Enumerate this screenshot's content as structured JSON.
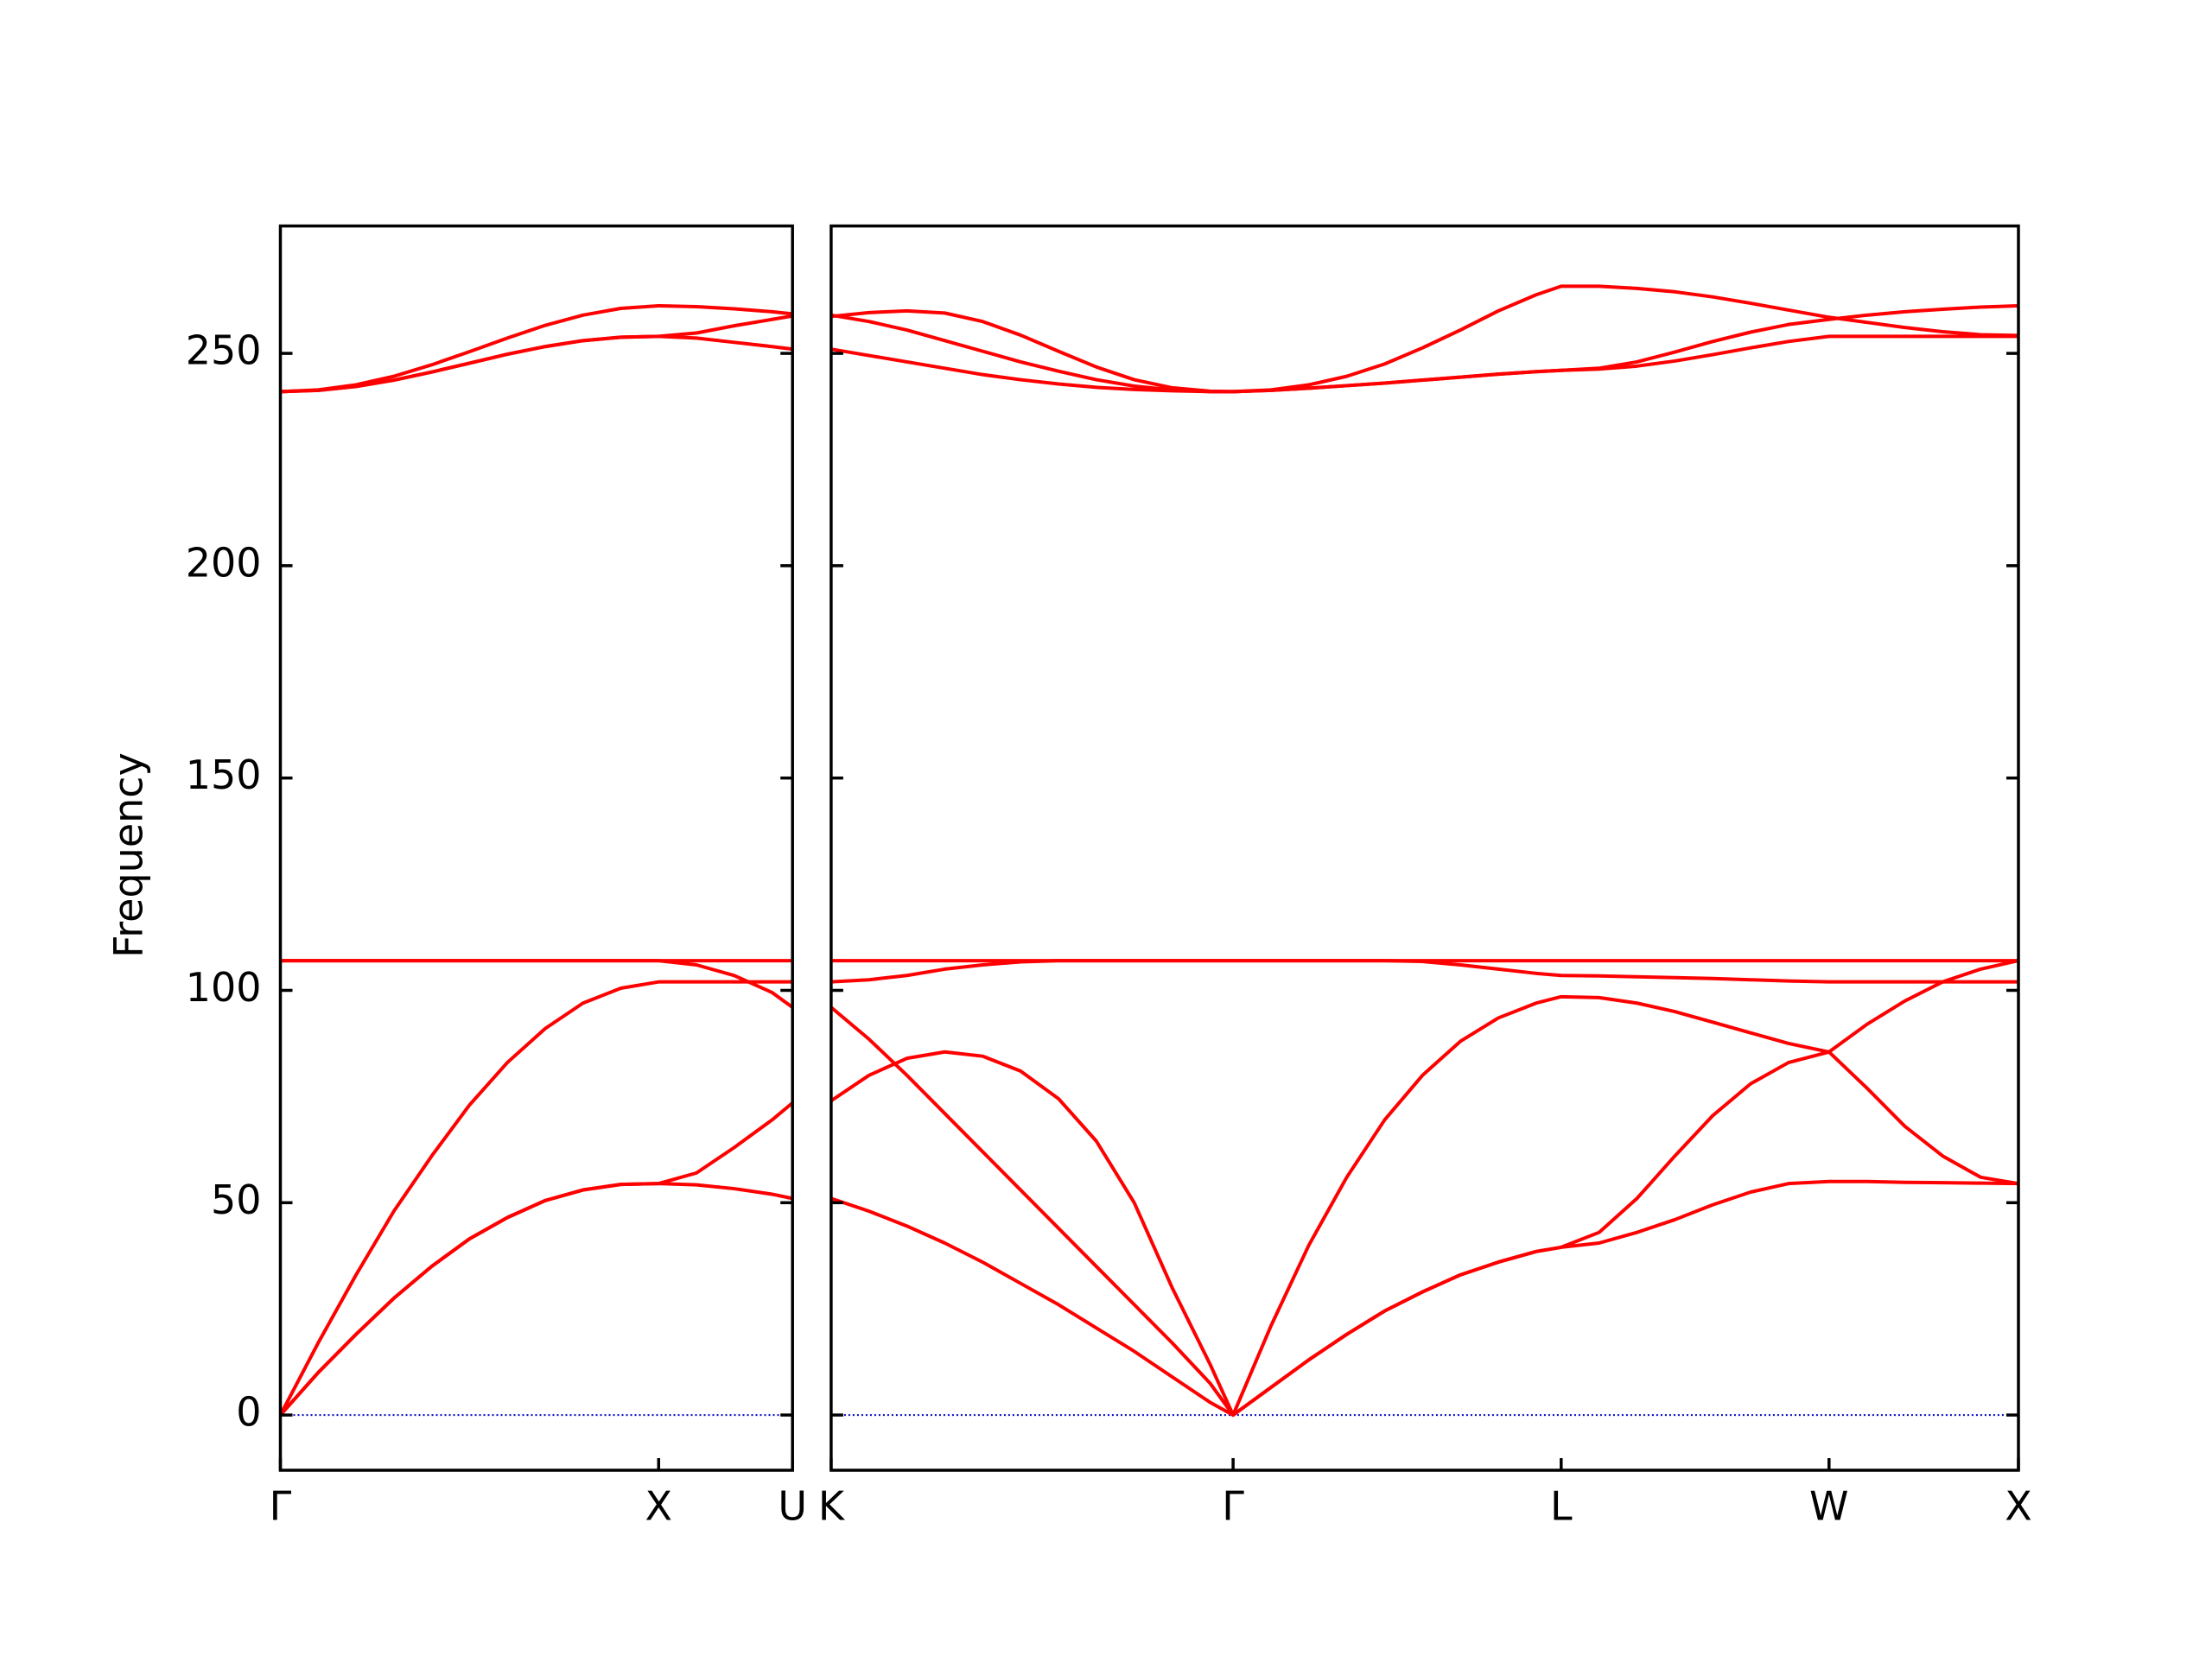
{
  "chart_data": [
    {
      "type": "line",
      "ylabel": "Frequency",
      "x": [
        0,
        0.1,
        0.2,
        0.3,
        0.4,
        0.5,
        0.6,
        0.7,
        0.8,
        0.9,
        1.0,
        1.1,
        1.2,
        1.3,
        1.354
      ],
      "xlim": [
        0,
        1.354
      ],
      "xticks": [
        {
          "value": 0,
          "label": "Γ"
        },
        {
          "value": 1.0,
          "label": "X"
        },
        {
          "value": 1.354,
          "label": "U"
        }
      ],
      "ylim": [
        -13,
        280
      ],
      "yticks": [
        0,
        50,
        100,
        150,
        200,
        250
      ],
      "show_ytick_labels": true,
      "hlines": [
        0
      ],
      "hline_color": "#0000cc",
      "series": [
        {
          "color": "#ff0000",
          "values": [
            0,
            10,
            19,
            27.5,
            35,
            41.5,
            46.5,
            50.5,
            53,
            54.3,
            54.5,
            54.2,
            53.3,
            52,
            51
          ]
        },
        {
          "color": "#ff0000",
          "values": [
            0,
            10,
            19,
            27.5,
            35,
            41.5,
            46.5,
            50.5,
            53,
            54.3,
            54.5,
            57,
            63,
            69.5,
            73.5
          ]
        },
        {
          "color": "#ff0000",
          "values": [
            0,
            17,
            33,
            48,
            61,
            73,
            83,
            91,
            97,
            100.5,
            102,
            102,
            102,
            102,
            102
          ]
        },
        {
          "color": "#ff0000",
          "values": [
            107,
            107,
            107,
            107,
            107,
            107,
            107,
            107,
            107,
            107,
            107,
            106,
            103.5,
            99.5,
            96
          ]
        },
        {
          "color": "#ff0000",
          "values": [
            107,
            107,
            107,
            107,
            107,
            107,
            107,
            107,
            107,
            107,
            107,
            107,
            107,
            107,
            107
          ]
        },
        {
          "color": "#ff0000",
          "values": [
            241,
            241.3,
            242.2,
            243.7,
            245.6,
            247.7,
            249.8,
            251.6,
            253,
            253.8,
            254,
            253.6,
            252.6,
            251.6,
            251
          ]
        },
        {
          "color": "#ff0000",
          "values": [
            241,
            241.3,
            242.2,
            243.7,
            245.6,
            247.7,
            249.8,
            251.6,
            253,
            253.8,
            254,
            254.8,
            256.5,
            258,
            258.8
          ]
        },
        {
          "color": "#ff0000",
          "values": [
            241,
            241.4,
            242.6,
            244.6,
            247.3,
            250.4,
            253.6,
            256.6,
            259,
            260.6,
            261.2,
            261,
            260.5,
            259.8,
            259.3
          ]
        }
      ]
    },
    {
      "type": "line",
      "x": [
        0,
        0.1,
        0.2,
        0.3,
        0.4,
        0.5,
        0.6,
        0.7,
        0.8,
        0.9,
        1.0,
        1.061,
        1.161,
        1.261,
        1.361,
        1.461,
        1.561,
        1.661,
        1.761,
        1.861,
        1.927,
        2.027,
        2.127,
        2.227,
        2.327,
        2.427,
        2.527,
        2.634,
        2.734,
        2.834,
        2.934,
        3.034,
        3.134
      ],
      "xlim": [
        0,
        3.134
      ],
      "xticks": [
        {
          "value": 0,
          "label": "K"
        },
        {
          "value": 1.061,
          "label": "Γ"
        },
        {
          "value": 1.927,
          "label": "L"
        },
        {
          "value": 2.634,
          "label": "W"
        },
        {
          "value": 3.134,
          "label": "X"
        }
      ],
      "ylim": [
        -13,
        280
      ],
      "yticks": [
        0,
        50,
        100,
        150,
        200,
        250
      ],
      "show_ytick_labels": false,
      "hlines": [
        0
      ],
      "hline_color": "#0000cc",
      "series": [
        {
          "color": "#ff0000",
          "values": [
            51,
            48,
            44.5,
            40.5,
            36,
            31,
            26,
            20.5,
            15,
            9,
            3,
            0,
            6.5,
            13,
            19,
            24.5,
            29,
            33,
            36,
            38.5,
            39.5,
            40.5,
            43,
            46,
            49.5,
            52.5,
            54.5,
            55,
            55,
            54.8,
            54.7,
            54.6,
            54.5
          ]
        },
        {
          "color": "#ff0000",
          "values": [
            96,
            88.5,
            80,
            71,
            62,
            53,
            44,
            35,
            26,
            17,
            7.5,
            0,
            6.5,
            13,
            19,
            24.5,
            29,
            33,
            36,
            38.5,
            39.5,
            43,
            51,
            61,
            70.5,
            78,
            83,
            85.5,
            77,
            68,
            61,
            56,
            54.5
          ]
        },
        {
          "color": "#ff0000",
          "values": [
            74,
            80,
            84,
            85.5,
            84.5,
            81,
            74.5,
            64.5,
            50,
            30,
            12,
            0,
            21,
            40,
            56,
            69.5,
            80,
            88,
            93.5,
            97,
            98.5,
            98.3,
            97,
            95,
            92.5,
            90,
            87.5,
            85.5,
            92,
            97.5,
            102,
            105,
            107
          ]
        },
        {
          "color": "#ff0000",
          "values": [
            102,
            102.5,
            103.5,
            105,
            106,
            106.7,
            107,
            107,
            107,
            107,
            107,
            107,
            107,
            107,
            107,
            107,
            106.8,
            106,
            105,
            104,
            103.5,
            103.4,
            103.2,
            103,
            102.8,
            102.5,
            102.2,
            102,
            102,
            102,
            102,
            102,
            102
          ]
        },
        {
          "color": "#ff0000",
          "values": [
            107,
            107,
            107,
            107,
            107,
            107,
            107,
            107,
            107,
            107,
            107,
            107,
            107,
            107,
            107,
            107,
            107,
            107,
            107,
            107,
            107,
            107,
            107,
            107,
            107,
            107,
            107,
            107,
            107,
            107,
            107,
            107,
            107
          ]
        },
        {
          "color": "#ff0000",
          "values": [
            251,
            249.5,
            248,
            246.5,
            245,
            243.8,
            242.8,
            242,
            241.5,
            241.2,
            241,
            241,
            241.3,
            241.8,
            242.4,
            243,
            243.7,
            244.4,
            245.1,
            245.7,
            246,
            246.3,
            247,
            248.2,
            249.7,
            251.3,
            252.8,
            254,
            254,
            254,
            254,
            254,
            254
          ]
        },
        {
          "color": "#ff0000",
          "values": [
            259,
            257.5,
            255.5,
            253,
            250.5,
            248,
            245.8,
            243.8,
            242.3,
            241.4,
            241,
            241,
            241.3,
            241.8,
            242.4,
            243,
            243.7,
            244.4,
            245.1,
            245.7,
            246,
            246.5,
            248,
            250.3,
            252.8,
            255,
            256.8,
            258,
            259,
            259.8,
            260.4,
            260.9,
            261.2
          ]
        },
        {
          "color": "#ff0000",
          "values": [
            258.7,
            259.6,
            260,
            259.5,
            257.5,
            254.3,
            250.5,
            246.8,
            243.8,
            241.9,
            241.1,
            241,
            241.4,
            242.6,
            244.6,
            247.5,
            251.3,
            255.5,
            260,
            263.8,
            265.8,
            265.8,
            265.3,
            264.5,
            263.3,
            261.8,
            260.2,
            258.5,
            257.3,
            256.1,
            255.1,
            254.4,
            254.2
          ]
        }
      ]
    }
  ]
}
